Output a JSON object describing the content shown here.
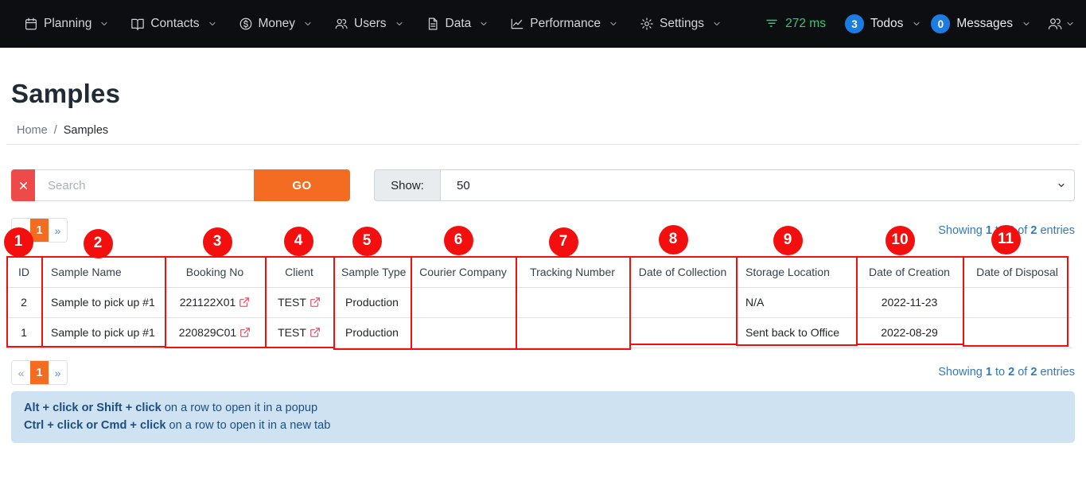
{
  "colors": {
    "accent_orange": "#f36c21",
    "annotation_red": "#f40f0f",
    "badge_blue": "#1b7ce2",
    "latency_green": "#2ecc71",
    "link_blue": "#337ab7",
    "clear_button_red": "#ee4a4a",
    "info_bg": "#cfe2f2",
    "info_text": "#1c4f80",
    "navbar_bg": "#0c0e11"
  },
  "nav": {
    "items": [
      {
        "label": "Planning",
        "icon": "calendar-icon"
      },
      {
        "label": "Contacts",
        "icon": "book-icon"
      },
      {
        "label": "Money",
        "icon": "dollar-circle-icon"
      },
      {
        "label": "Users",
        "icon": "users-icon"
      },
      {
        "label": "Data",
        "icon": "document-icon"
      },
      {
        "label": "Performance",
        "icon": "line-chart-icon"
      },
      {
        "label": "Settings",
        "icon": "gear-icon"
      }
    ],
    "latency": "272 ms",
    "todos": {
      "count": "3",
      "label": "Todos"
    },
    "messages": {
      "count": "0",
      "label": "Messages"
    }
  },
  "page": {
    "title": "Samples"
  },
  "breadcrumb": {
    "home": "Home",
    "separator": "/",
    "current": "Samples"
  },
  "search": {
    "placeholder": "Search",
    "go_label": "GO",
    "clear_icon": "close-icon"
  },
  "show": {
    "label": "Show:",
    "selected": "50"
  },
  "pagination": {
    "prev": "«",
    "current": "1",
    "next": "»"
  },
  "showing": {
    "prefix": "Showing ",
    "from": "1",
    "mid1": " to ",
    "to": "2",
    "mid2": " of ",
    "total": "2",
    "suffix": " entries"
  },
  "table": {
    "columns": [
      "ID",
      "Sample Name",
      "Booking No",
      "Client",
      "Sample Type",
      "Courier Company",
      "Tracking Number",
      "Date of Collection",
      "Storage Location",
      "Date of Creation",
      "Date of Disposal"
    ],
    "rows": [
      {
        "id": "2",
        "sample_name": "Sample to pick up #1",
        "booking_no": "221122X01",
        "client": "TEST",
        "sample_type": "Production",
        "courier_company": "",
        "tracking_number": "",
        "date_of_collection": "",
        "storage_location": "N/A",
        "date_of_creation": "2022-11-23",
        "date_of_disposal": ""
      },
      {
        "id": "1",
        "sample_name": "Sample to pick up #1",
        "booking_no": "220829C01",
        "client": "TEST",
        "sample_type": "Production",
        "courier_company": "",
        "tracking_number": "",
        "date_of_collection": "",
        "storage_location": "Sent back to Office",
        "date_of_creation": "2022-08-29",
        "date_of_disposal": ""
      }
    ]
  },
  "info": {
    "line1_bold": "Alt + click or Shift + click",
    "line1_text": " on a row to open it in a popup",
    "line2_bold": "Ctrl + click or Cmd + click",
    "line2_text": " on a row to open it in a new tab"
  },
  "annotations": {
    "numbers": [
      "1",
      "2",
      "3",
      "4",
      "5",
      "6",
      "7",
      "8",
      "9",
      "10",
      "11"
    ]
  }
}
